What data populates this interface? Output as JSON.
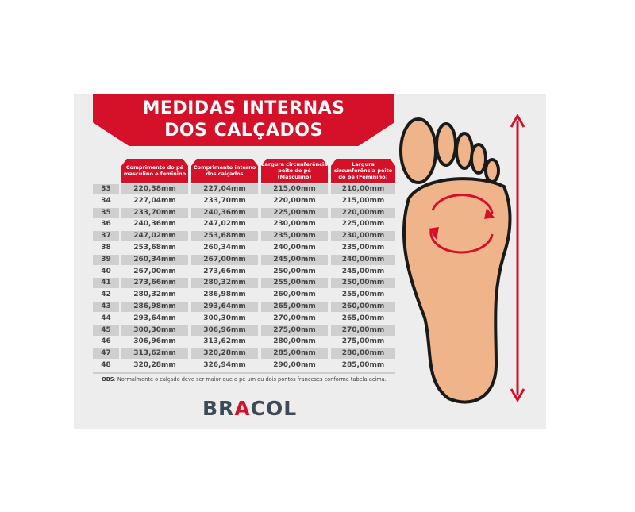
{
  "title": {
    "line1": "MEDIDAS INTERNAS",
    "line2": "DOS CALÇADOS"
  },
  "columns": [
    "Comprimento do pé masculino e feminino",
    "Comprimento interno dos calçados",
    "Largura circunferência peito do pé (Masculino)",
    "Largura circunferência peito do pé (Feminino)"
  ],
  "rows": [
    [
      "33",
      "220,38mm",
      "227,04mm",
      "215,00mm",
      "210,00mm"
    ],
    [
      "34",
      "227,04mm",
      "233,70mm",
      "220,00mm",
      "215,00mm"
    ],
    [
      "35",
      "233,70mm",
      "240,36mm",
      "225,00mm",
      "220,00mm"
    ],
    [
      "36",
      "240,36mm",
      "247,02mm",
      "230,00mm",
      "225,00mm"
    ],
    [
      "37",
      "247,02mm",
      "253,68mm",
      "235,00mm",
      "230,00mm"
    ],
    [
      "38",
      "253,68mm",
      "260,34mm",
      "240,00mm",
      "235,00mm"
    ],
    [
      "39",
      "260,34mm",
      "267,00mm",
      "245,00mm",
      "240,00mm"
    ],
    [
      "40",
      "267,00mm",
      "273,66mm",
      "250,00mm",
      "245,00mm"
    ],
    [
      "41",
      "273,66mm",
      "280,32mm",
      "255,00mm",
      "250,00mm"
    ],
    [
      "42",
      "280,32mm",
      "286,98mm",
      "260,00mm",
      "255,00mm"
    ],
    [
      "43",
      "286,98mm",
      "293,64mm",
      "265,00mm",
      "260,00mm"
    ],
    [
      "44",
      "293,64mm",
      "300,30mm",
      "270,00mm",
      "265,00mm"
    ],
    [
      "45",
      "300,30mm",
      "306,96mm",
      "275,00mm",
      "270,00mm"
    ],
    [
      "46",
      "306,96mm",
      "313,62mm",
      "280,00mm",
      "275,00mm"
    ],
    [
      "47",
      "313,62mm",
      "320,28mm",
      "285,00mm",
      "280,00mm"
    ],
    [
      "48",
      "320,28mm",
      "326,94mm",
      "290,00mm",
      "285,00mm"
    ]
  ],
  "obs": {
    "label": "OBS",
    "text": ": Normalmente o calçado deve ser maior que o pé um ou dois pontos franceses conforme tabela acima."
  },
  "logo": "BRACOL",
  "colors": {
    "accent": "#d5112a",
    "logo": "#3e4a55",
    "background": "#ededed"
  }
}
